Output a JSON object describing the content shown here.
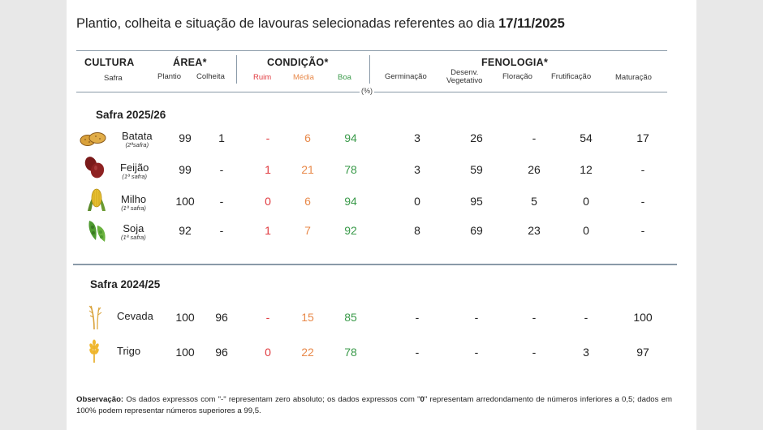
{
  "title": {
    "text": "Plantio, colheita e situação de lavouras selecionadas referentes ao dia ",
    "date": "17/11/2025"
  },
  "header": {
    "cultura": "CULTURA",
    "safra": "Safra",
    "area": "ÁREA*",
    "plantio": "Plantio",
    "colheita": "Colheita",
    "condicao": "CONDIÇÃO*",
    "ruim": "Ruim",
    "media": "Média",
    "boa": "Boa",
    "fenologia": "FENOLOGIA*",
    "germinacao": "Germinação",
    "desenv_1": "Desenv.",
    "desenv_2": "Vegetativo",
    "floracao": "Floração",
    "frutificacao": "Frutificação",
    "maturacao": "Maturação",
    "pct": "(%)"
  },
  "sections": [
    {
      "label": "Safra 2025/26",
      "rows": [
        {
          "icon": "potato-icon",
          "name": "Batata",
          "sub": "(2ªsafra)",
          "plantio": "99",
          "colheita": "1",
          "ruim": "-",
          "media": "6",
          "boa": "94",
          "germinacao": "3",
          "desenv": "26",
          "floracao": "-",
          "frutificacao": "54",
          "maturacao": "17"
        },
        {
          "icon": "bean-icon",
          "name": "Feijão",
          "sub": "(1ª safra)",
          "plantio": "99",
          "colheita": "-",
          "ruim": "1",
          "media": "21",
          "boa": "78",
          "germinacao": "3",
          "desenv": "59",
          "floracao": "26",
          "frutificacao": "12",
          "maturacao": "-"
        },
        {
          "icon": "corn-icon",
          "name": "Milho",
          "sub": "(1ª safra)",
          "plantio": "100",
          "colheita": "-",
          "ruim": "0",
          "media": "6",
          "boa": "94",
          "germinacao": "0",
          "desenv": "95",
          "floracao": "5",
          "frutificacao": "0",
          "maturacao": "-"
        },
        {
          "icon": "soybean-icon",
          "name": "Soja",
          "sub": "(1ª safra)",
          "plantio": "92",
          "colheita": "-",
          "ruim": "1",
          "media": "7",
          "boa": "92",
          "germinacao": "8",
          "desenv": "69",
          "floracao": "23",
          "frutificacao": "0",
          "maturacao": "-"
        }
      ]
    },
    {
      "label": "Safra 2024/25",
      "rows": [
        {
          "icon": "barley-icon",
          "name": "Cevada",
          "sub": "",
          "plantio": "100",
          "colheita": "96",
          "ruim": "-",
          "media": "15",
          "boa": "85",
          "germinacao": "-",
          "desenv": "-",
          "floracao": "-",
          "frutificacao": "-",
          "maturacao": "100"
        },
        {
          "icon": "wheat-icon",
          "name": "Trigo",
          "sub": "",
          "plantio": "100",
          "colheita": "96",
          "ruim": "0",
          "media": "22",
          "boa": "78",
          "germinacao": "-",
          "desenv": "-",
          "floracao": "-",
          "frutificacao": "3",
          "maturacao": "97"
        }
      ]
    }
  ],
  "note": {
    "label": "Observação:",
    "text_1": " Os dados expressos com \"-\" representam zero absoluto; os dados expressos com \"",
    "bold_zero": "0",
    "text_2": "\" representam arredondamento de números inferiores a 0,5; dados em 100% podem representar números superiores a 99,5."
  },
  "colors": {
    "ruim": "#e0393e",
    "media": "#e8894a",
    "boa": "#3a9a4a",
    "rule": "#8a9aa8"
  }
}
